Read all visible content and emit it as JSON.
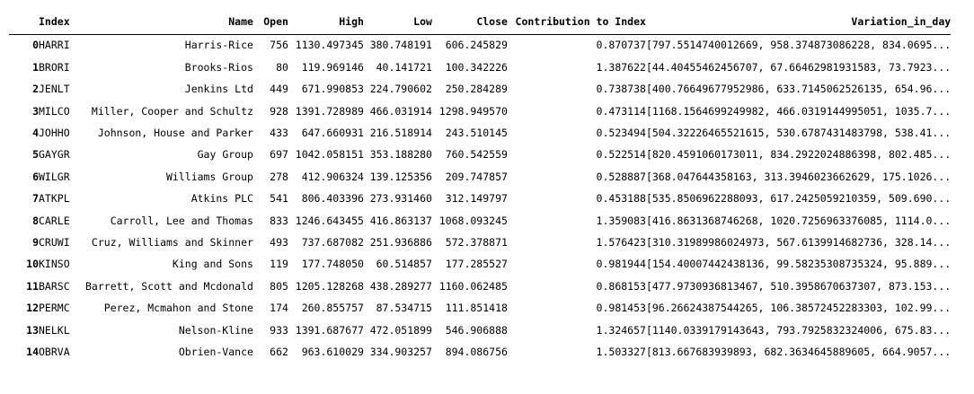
{
  "dataframe": {
    "columns": {
      "index_col": "",
      "index": "Index",
      "name": "Name",
      "open": "Open",
      "high": "High",
      "low": "Low",
      "close": "Close",
      "contribution": "Contribution to Index",
      "variation": "Variation_in_day"
    },
    "rows": [
      {
        "i": "0",
        "index": "HARRI",
        "name": "Harris-Rice",
        "open": "756",
        "high": "1130.497345",
        "low": "380.748191",
        "close": "606.245829",
        "contribution": "0.870737",
        "variation": "[797.5514740012669, 958.374873086228, 834.0695..."
      },
      {
        "i": "1",
        "index": "BRORI",
        "name": "Brooks-Rios",
        "open": "80",
        "high": "119.969146",
        "low": "40.141721",
        "close": "100.342226",
        "contribution": "1.387622",
        "variation": "[44.40455462456707, 67.66462981931583, 73.7923..."
      },
      {
        "i": "2",
        "index": "JENLT",
        "name": "Jenkins Ltd",
        "open": "449",
        "high": "671.990853",
        "low": "224.790602",
        "close": "250.284289",
        "contribution": "0.738738",
        "variation": "[400.76649677952986, 633.7145062526135, 654.96..."
      },
      {
        "i": "3",
        "index": "MILCO",
        "name": "Miller, Cooper and Schultz",
        "open": "928",
        "high": "1391.728989",
        "low": "466.031914",
        "close": "1298.949570",
        "contribution": "0.473114",
        "variation": "[1168.1564699249982, 466.0319144995051, 1035.7..."
      },
      {
        "i": "4",
        "index": "JOHHO",
        "name": "Johnson, House and Parker",
        "open": "433",
        "high": "647.660931",
        "low": "216.518914",
        "close": "243.510145",
        "contribution": "0.523494",
        "variation": "[504.32226465521615, 530.6787431483798, 538.41..."
      },
      {
        "i": "5",
        "index": "GAYGR",
        "name": "Gay Group",
        "open": "697",
        "high": "1042.058151",
        "low": "353.188280",
        "close": "760.542559",
        "contribution": "0.522514",
        "variation": "[820.4591060173011, 834.2922024886398, 802.485..."
      },
      {
        "i": "6",
        "index": "WILGR",
        "name": "Williams Group",
        "open": "278",
        "high": "412.906324",
        "low": "139.125356",
        "close": "209.747857",
        "contribution": "0.528887",
        "variation": "[368.047644358163, 313.3946023662629, 175.1026..."
      },
      {
        "i": "7",
        "index": "ATKPL",
        "name": "Atkins PLC",
        "open": "541",
        "high": "806.403396",
        "low": "273.931460",
        "close": "312.149797",
        "contribution": "0.453188",
        "variation": "[535.8506962288093, 617.2425059210359, 509.690..."
      },
      {
        "i": "8",
        "index": "CARLE",
        "name": "Carroll, Lee and Thomas",
        "open": "833",
        "high": "1246.643455",
        "low": "416.863137",
        "close": "1068.093245",
        "contribution": "1.359083",
        "variation": "[416.8631368746268, 1020.7256963376085, 1114.0..."
      },
      {
        "i": "9",
        "index": "CRUWI",
        "name": "Cruz, Williams and Skinner",
        "open": "493",
        "high": "737.687082",
        "low": "251.936886",
        "close": "572.378871",
        "contribution": "1.576423",
        "variation": "[310.31989986024973, 567.6139914682736, 328.14..."
      },
      {
        "i": "10",
        "index": "KINSO",
        "name": "King and Sons",
        "open": "119",
        "high": "177.748050",
        "low": "60.514857",
        "close": "177.285527",
        "contribution": "0.981944",
        "variation": "[154.40007442438136, 99.58235308735324, 95.889..."
      },
      {
        "i": "11",
        "index": "BARSC",
        "name": "Barrett, Scott and Mcdonald",
        "open": "805",
        "high": "1205.128268",
        "low": "438.289277",
        "close": "1160.062485",
        "contribution": "0.868153",
        "variation": "[477.9730936813467, 510.3958670637307, 873.153..."
      },
      {
        "i": "12",
        "index": "PERMC",
        "name": "Perez, Mcmahon and Stone",
        "open": "174",
        "high": "260.855757",
        "low": "87.534715",
        "close": "111.851418",
        "contribution": "0.981453",
        "variation": "[96.26624387544265, 106.38572452283303, 102.99..."
      },
      {
        "i": "13",
        "index": "NELKL",
        "name": "Nelson-Kline",
        "open": "933",
        "high": "1391.687677",
        "low": "472.051899",
        "close": "546.906888",
        "contribution": "1.324657",
        "variation": "[1140.0339179143643, 793.7925832324006, 675.83..."
      },
      {
        "i": "14",
        "index": "OBRVA",
        "name": "Obrien-Vance",
        "open": "662",
        "high": "963.610029",
        "low": "334.903257",
        "close": "894.086756",
        "contribution": "1.503327",
        "variation": "[813.667683939893, 682.3634645889605, 664.9057..."
      }
    ]
  }
}
